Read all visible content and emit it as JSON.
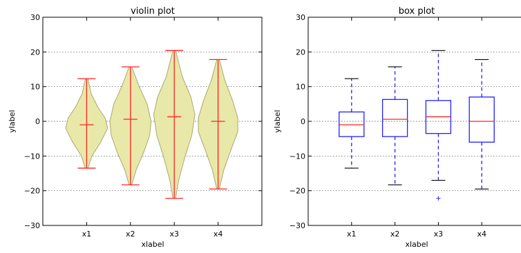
{
  "chart_data": [
    {
      "type": "violin",
      "title": "violin plot",
      "xlabel": "xlabel",
      "ylabel": "ylabel",
      "categories": [
        "x1",
        "x2",
        "x3",
        "x4"
      ],
      "ylim": [
        -30,
        30
      ],
      "yticks": [
        -30,
        -20,
        -10,
        0,
        10,
        20,
        30
      ],
      "ytick_labels": [
        "−30",
        "−20",
        "−10",
        "0",
        "10",
        "20",
        "30"
      ],
      "grid": "y-dotted",
      "fill_color": "#e8e8a8",
      "edge_color": "#a8a870",
      "line_color": "#ff2020",
      "series": [
        {
          "min": -13.5,
          "max": 12.3,
          "mean": -1.0,
          "density_y": [
            -13.5,
            -10,
            -6,
            -2,
            1,
            4,
            8,
            12.3
          ],
          "density_w": [
            0.03,
            0.12,
            0.32,
            0.48,
            0.42,
            0.26,
            0.1,
            0.03
          ]
        },
        {
          "min": -18.3,
          "max": 15.7,
          "mean": 0.6,
          "density_y": [
            -18.3,
            -14,
            -9,
            -4,
            0,
            5,
            10,
            15.7
          ],
          "density_w": [
            0.03,
            0.13,
            0.3,
            0.44,
            0.47,
            0.38,
            0.2,
            0.03
          ]
        },
        {
          "min": -22.2,
          "max": 20.4,
          "mean": 1.3,
          "density_y": [
            -22.2,
            -17,
            -10,
            -4,
            2,
            7,
            13,
            20.4
          ],
          "density_w": [
            0.03,
            0.1,
            0.25,
            0.4,
            0.47,
            0.38,
            0.18,
            0.03
          ]
        },
        {
          "min": -19.5,
          "max": 17.8,
          "mean": 0.0,
          "density_y": [
            -19.5,
            -14,
            -8,
            -3,
            1,
            6,
            12,
            17.8
          ],
          "density_w": [
            0.03,
            0.13,
            0.3,
            0.45,
            0.45,
            0.33,
            0.15,
            0.03
          ]
        }
      ]
    },
    {
      "type": "box",
      "title": "box plot",
      "xlabel": "xlabel",
      "ylabel": "ylabel",
      "categories": [
        "x1",
        "x2",
        "x3",
        "x4"
      ],
      "ylim": [
        -30,
        30
      ],
      "yticks": [
        -30,
        -20,
        -10,
        0,
        10,
        20,
        30
      ],
      "ytick_labels": [
        "−30",
        "−20",
        "−10",
        "0",
        "10",
        "20",
        "30"
      ],
      "grid": "y-dotted",
      "box_color": "#2020ff",
      "median_color": "#ff2020",
      "series": [
        {
          "whisker_low": -13.5,
          "q1": -4.4,
          "median": -1.0,
          "q3": 2.7,
          "whisker_high": 12.3,
          "outliers": []
        },
        {
          "whisker_low": -18.3,
          "q1": -4.4,
          "median": 0.6,
          "q3": 6.3,
          "whisker_high": 15.7,
          "outliers": []
        },
        {
          "whisker_low": -17.0,
          "q1": -3.5,
          "median": 1.3,
          "q3": 6.0,
          "whisker_high": 20.4,
          "outliers": [
            -22.2
          ]
        },
        {
          "whisker_low": -19.5,
          "q1": -6.0,
          "median": 0.0,
          "q3": 7.0,
          "whisker_high": 17.8,
          "outliers": []
        }
      ]
    }
  ]
}
